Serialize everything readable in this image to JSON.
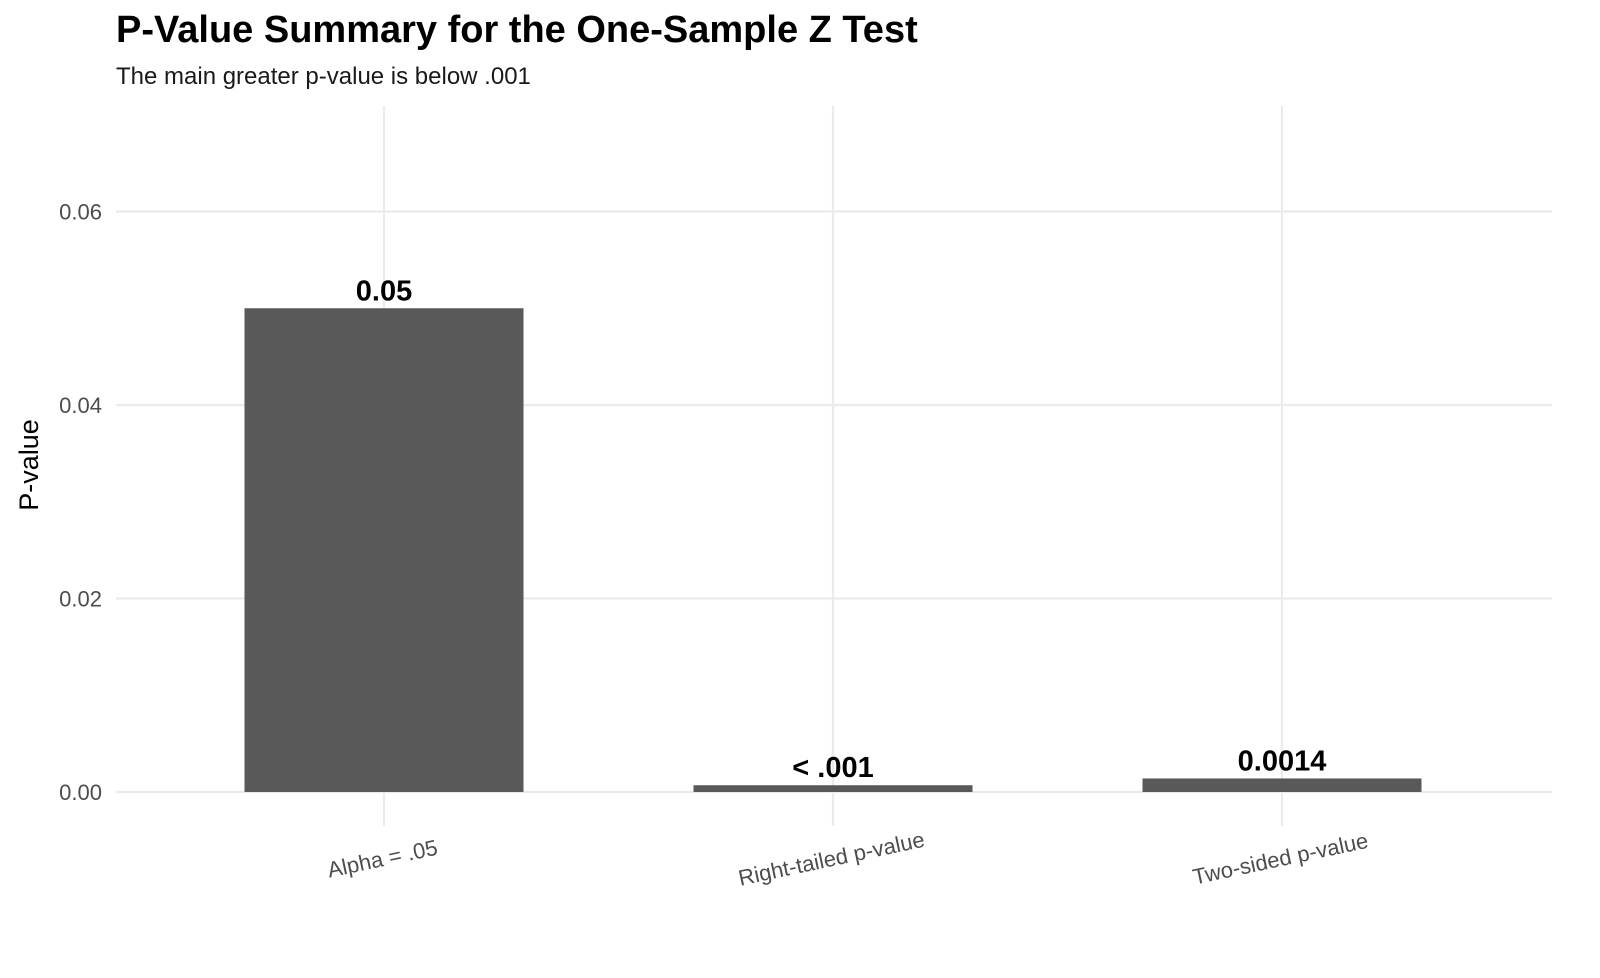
{
  "chart_data": {
    "type": "bar",
    "title": "P-Value Summary for the One-Sample Z Test",
    "subtitle": "The main greater p-value is below .001",
    "xlabel": "",
    "ylabel": "P-value",
    "categories": [
      "Alpha = .05",
      "Right-tailed p-value",
      "Two-sided p-value"
    ],
    "values": [
      0.05,
      0.0007,
      0.0014
    ],
    "data_labels": [
      "0.05",
      "< .001",
      "0.0014"
    ],
    "ylim": [
      0,
      0.07
    ],
    "yticks": [
      0.0,
      0.02,
      0.04,
      0.06
    ],
    "ytick_labels": [
      "0.00",
      "0.02",
      "0.04",
      "0.06"
    ],
    "bar_color": "#595959",
    "grid_color": "#ebebeb",
    "grid": true,
    "legend": "none"
  }
}
